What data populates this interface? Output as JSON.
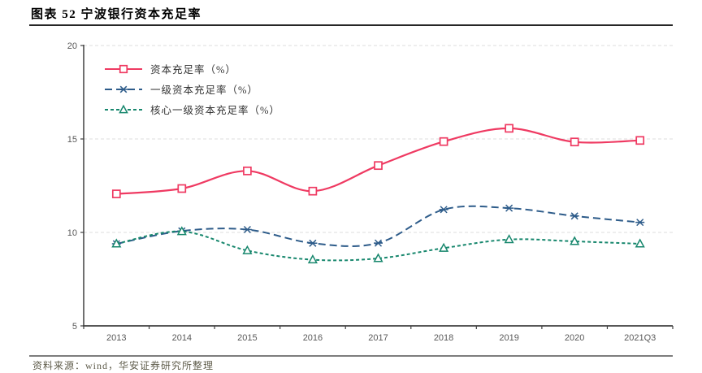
{
  "page": {
    "title": "图表 52 宁波银行资本充足率",
    "source_note": "资料来源：wind，华安证券研究所整理"
  },
  "chart_data": {
    "type": "line",
    "title": "宁波银行资本充足率",
    "categories": [
      "2013",
      "2014",
      "2015",
      "2016",
      "2017",
      "2018",
      "2019",
      "2020",
      "2021Q3"
    ],
    "series": [
      {
        "name": "资本充足率（%）",
        "color": "#EF3A62",
        "dash": "solid",
        "marker": "square",
        "values": [
          12.06,
          12.35,
          13.29,
          12.21,
          13.58,
          14.86,
          15.57,
          14.84,
          14.92
        ]
      },
      {
        "name": "一级资本充足率（%）",
        "color": "#2E5C8A",
        "dash": "long",
        "marker": "xstar",
        "values": [
          9.39,
          10.08,
          10.15,
          9.42,
          9.43,
          11.22,
          11.3,
          10.88,
          10.54
        ]
      },
      {
        "name": "核心一级资本充足率（%）",
        "color": "#17876D",
        "dash": "short",
        "marker": "triangle",
        "values": [
          9.39,
          10.05,
          9.03,
          8.54,
          8.61,
          9.16,
          9.62,
          9.52,
          9.39
        ]
      }
    ],
    "xlabel": "",
    "ylabel": "",
    "ylim": [
      5,
      20
    ],
    "yticks": [
      5,
      10,
      15,
      20
    ],
    "grid": true,
    "grid_color": "#DCDCDC",
    "axis_color": "#404040",
    "tick_label_color": "#595959",
    "legend_position": "top-left",
    "smooth": true
  }
}
